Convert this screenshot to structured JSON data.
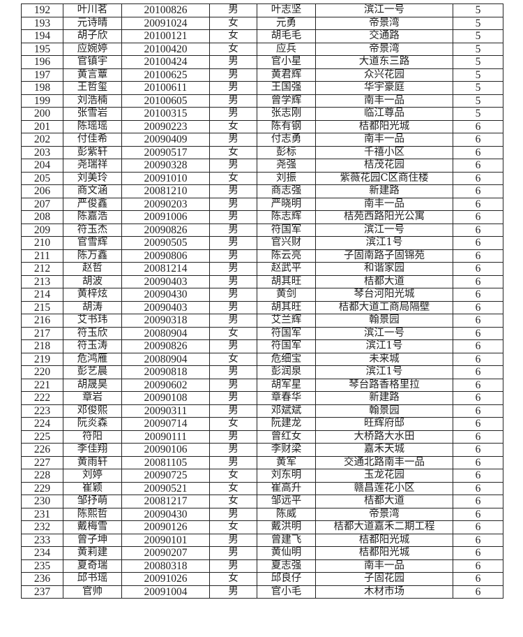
{
  "rows": [
    [
      "192",
      "叶川茗",
      "20100826",
      "男",
      "叶志坚",
      "滨江一号",
      "5"
    ],
    [
      "193",
      "元诗晴",
      "20091024",
      "女",
      "元勇",
      "帝景湾",
      "5"
    ],
    [
      "194",
      "胡子欣",
      "20100121",
      "女",
      "胡毛毛",
      "交通路",
      "5"
    ],
    [
      "195",
      "应婉婷",
      "20100420",
      "女",
      "应兵",
      "帝景湾",
      "5"
    ],
    [
      "196",
      "官镇宇",
      "20100424",
      "男",
      "官小星",
      "大道东三路",
      "5"
    ],
    [
      "197",
      "黄言蕈",
      "20100625",
      "男",
      "黄君辉",
      "众兴花园",
      "5"
    ],
    [
      "198",
      "王哲玺",
      "20100611",
      "男",
      "王国强",
      "华宇豪庭",
      "5"
    ],
    [
      "199",
      "刘浩楠",
      "20100605",
      "男",
      "曾学辉",
      "南丰一品",
      "5"
    ],
    [
      "200",
      "张雪岩",
      "20100315",
      "男",
      "张志刚",
      "临江尊品",
      "5"
    ],
    [
      "201",
      "陈瑶瑶",
      "20090223",
      "女",
      "陈有钢",
      "桔都阳光城",
      "6"
    ],
    [
      "202",
      "付佳希",
      "20090409",
      "男",
      "付志勇",
      "南丰一品",
      "6"
    ],
    [
      "203",
      "彭紫轩",
      "20090517",
      "女",
      "彭标",
      "千禧小区",
      "6"
    ],
    [
      "204",
      "尧瑞祥",
      "20090328",
      "男",
      "尧强",
      "桔茂花园",
      "6"
    ],
    [
      "205",
      "刘美玲",
      "20091010",
      "女",
      "刘振",
      "紫薇花园C区商住楼",
      "6"
    ],
    [
      "206",
      "商文涵",
      "20081210",
      "男",
      "商志强",
      "新建路",
      "6"
    ],
    [
      "207",
      "严俊鑫",
      "20090203",
      "男",
      "严晓明",
      "南丰一品",
      "6"
    ],
    [
      "208",
      "陈嘉浩",
      "20091006",
      "男",
      "陈志辉",
      "桔苑西路阳光公寓",
      "6"
    ],
    [
      "209",
      "符玉杰",
      "20090826",
      "男",
      "符国军",
      "滨江一号",
      "6"
    ],
    [
      "210",
      "官雪辉",
      "20090505",
      "男",
      "官兴财",
      "滨江1号",
      "6"
    ],
    [
      "211",
      "陈万鑫",
      "20090806",
      "男",
      "陈云亮",
      "子固南路子固锦苑",
      "6"
    ],
    [
      "212",
      "赵哲",
      "20081214",
      "男",
      "赵武平",
      "和谐家园",
      "6"
    ],
    [
      "213",
      "胡波",
      "20090403",
      "男",
      "胡其旺",
      "桔都大道",
      "6"
    ],
    [
      "214",
      "黄梓炫",
      "20090430",
      "男",
      "黄剑",
      "琴台河阳光城",
      "6"
    ],
    [
      "215",
      "胡涛",
      "20090403",
      "男",
      "胡其旺",
      "桔都大道工商局隔壁",
      "6"
    ],
    [
      "216",
      "艾书玮",
      "20090318",
      "男",
      "艾兰辉",
      "翰景园",
      "6"
    ],
    [
      "217",
      "符玉欣",
      "20080904",
      "女",
      "符国军",
      "滨江一号",
      "6"
    ],
    [
      "218",
      "符玉涛",
      "20090826",
      "男",
      "符国军",
      "滨江1号",
      "6"
    ],
    [
      "219",
      "危鸿雁",
      "20080904",
      "女",
      "危细宝",
      "未来城",
      "6"
    ],
    [
      "220",
      "彭艺晨",
      "20090818",
      "男",
      "彭润泉",
      "滨江1号",
      "6"
    ],
    [
      "221",
      "胡晟昊",
      "20090602",
      "男",
      "胡军星",
      "琴台路香格里拉",
      "6"
    ],
    [
      "222",
      "章岩",
      "20090108",
      "男",
      "章春华",
      "新建路",
      "6"
    ],
    [
      "223",
      "邓俊熙",
      "20090311",
      "男",
      "邓斌斌",
      "翰景园",
      "6"
    ],
    [
      "224",
      "阮炎森",
      "20090714",
      "女",
      "阮建龙",
      "旺辉府邸",
      "6"
    ],
    [
      "225",
      "符阳",
      "20090111",
      "男",
      "曾红女",
      "大桥路大水田",
      "6"
    ],
    [
      "226",
      "李佳翔",
      "20090106",
      "男",
      "李财梁",
      "嘉禾天城",
      "6"
    ],
    [
      "227",
      "黄雨轩",
      "20081105",
      "男",
      "黄军",
      "交通北路南丰一品",
      "6"
    ],
    [
      "228",
      "刘婷",
      "20090725",
      "女",
      "刘东明",
      "玉龙花园",
      "6"
    ],
    [
      "229",
      "崔颖",
      "20090521",
      "女",
      "崔高升",
      "赣昌莲花小区",
      "6"
    ],
    [
      "230",
      "邹抒萌",
      "20081217",
      "女",
      "邹远平",
      "桔都大道",
      "6"
    ],
    [
      "231",
      "陈熙哲",
      "20090430",
      "男",
      "陈威",
      "帝景湾",
      "6"
    ],
    [
      "232",
      "戴梅雪",
      "20090126",
      "女",
      "戴洪明",
      "桔都大道嘉禾二期工程",
      "6"
    ],
    [
      "233",
      "曾子坤",
      "20090101",
      "男",
      "曾建飞",
      "桔都阳光城",
      "6"
    ],
    [
      "234",
      "黄莉建",
      "20090207",
      "男",
      "黄仙明",
      "桔都阳光城",
      "6"
    ],
    [
      "235",
      "夏奇瑞",
      "20080318",
      "男",
      "夏志强",
      "南丰一品",
      "6"
    ],
    [
      "236",
      "邱书瑶",
      "20091026",
      "女",
      "邱良仔",
      "子固花园",
      "6"
    ],
    [
      "237",
      "官帅",
      "20091004",
      "男",
      "官小毛",
      "木材市场",
      "6"
    ]
  ]
}
